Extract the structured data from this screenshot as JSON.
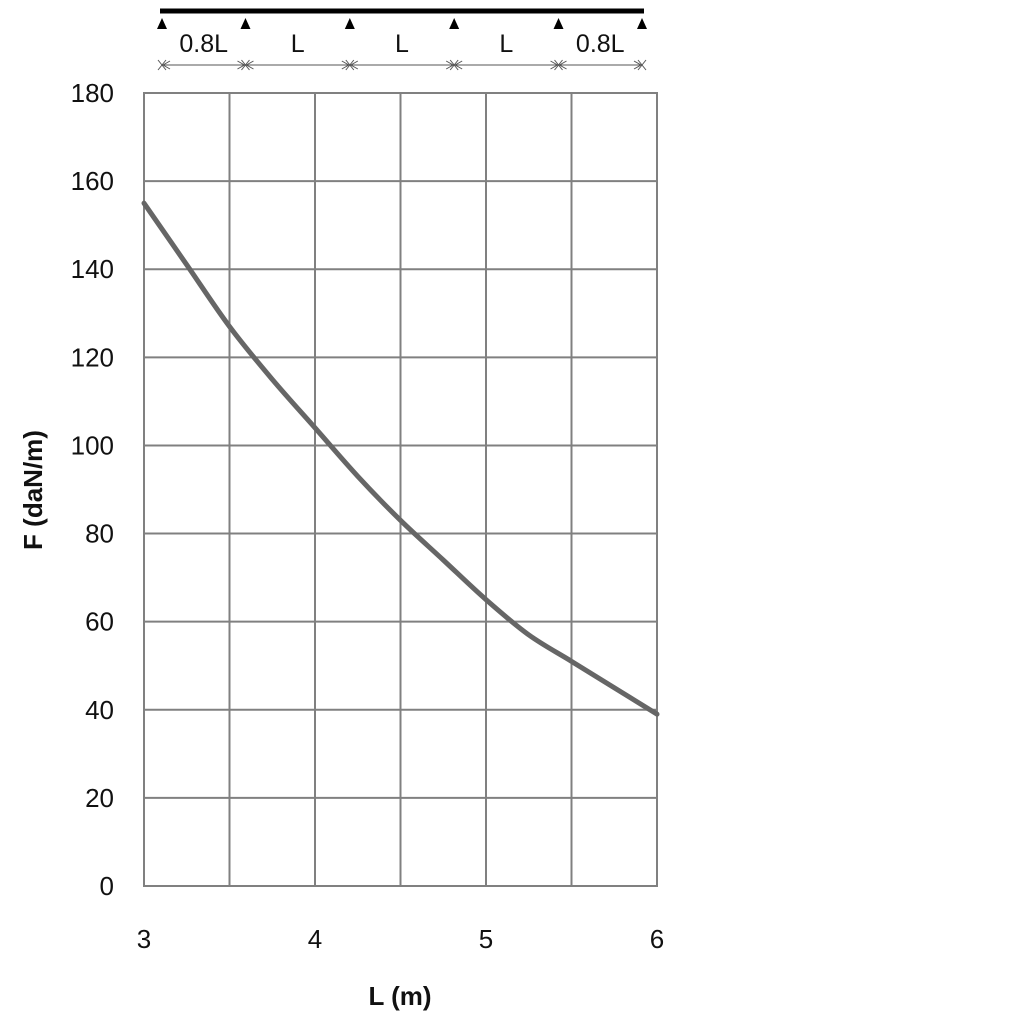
{
  "chart_data": {
    "type": "line",
    "xlabel": "L (m)",
    "ylabel": "F (daN/m)",
    "xlim": [
      3,
      6
    ],
    "ylim": [
      0,
      180
    ],
    "x_ticks": [
      "3",
      "4",
      "5",
      "6"
    ],
    "y_ticks": [
      "0",
      "20",
      "40",
      "60",
      "80",
      "100",
      "120",
      "140",
      "160",
      "180"
    ],
    "grid": true,
    "series": [
      {
        "color": "#666666",
        "x": [
          3.0,
          3.25,
          3.5,
          3.75,
          4.0,
          4.25,
          4.5,
          4.75,
          5.0,
          5.25,
          5.5,
          5.75,
          6.0
        ],
        "y": [
          155,
          141,
          127,
          115,
          104,
          93,
          83,
          74,
          65,
          57,
          51,
          45,
          39
        ]
      }
    ]
  },
  "beam_diagram": {
    "span_labels": [
      "0.8L",
      "L",
      "L",
      "L",
      "0.8L"
    ],
    "span_ratios": [
      0.8,
      1,
      1,
      1,
      0.8
    ],
    "support_icon": "triangle-support-icon"
  },
  "colors": {
    "grid": "#808080",
    "curve": "#666666",
    "beam": "#000000",
    "text": "#111111"
  }
}
